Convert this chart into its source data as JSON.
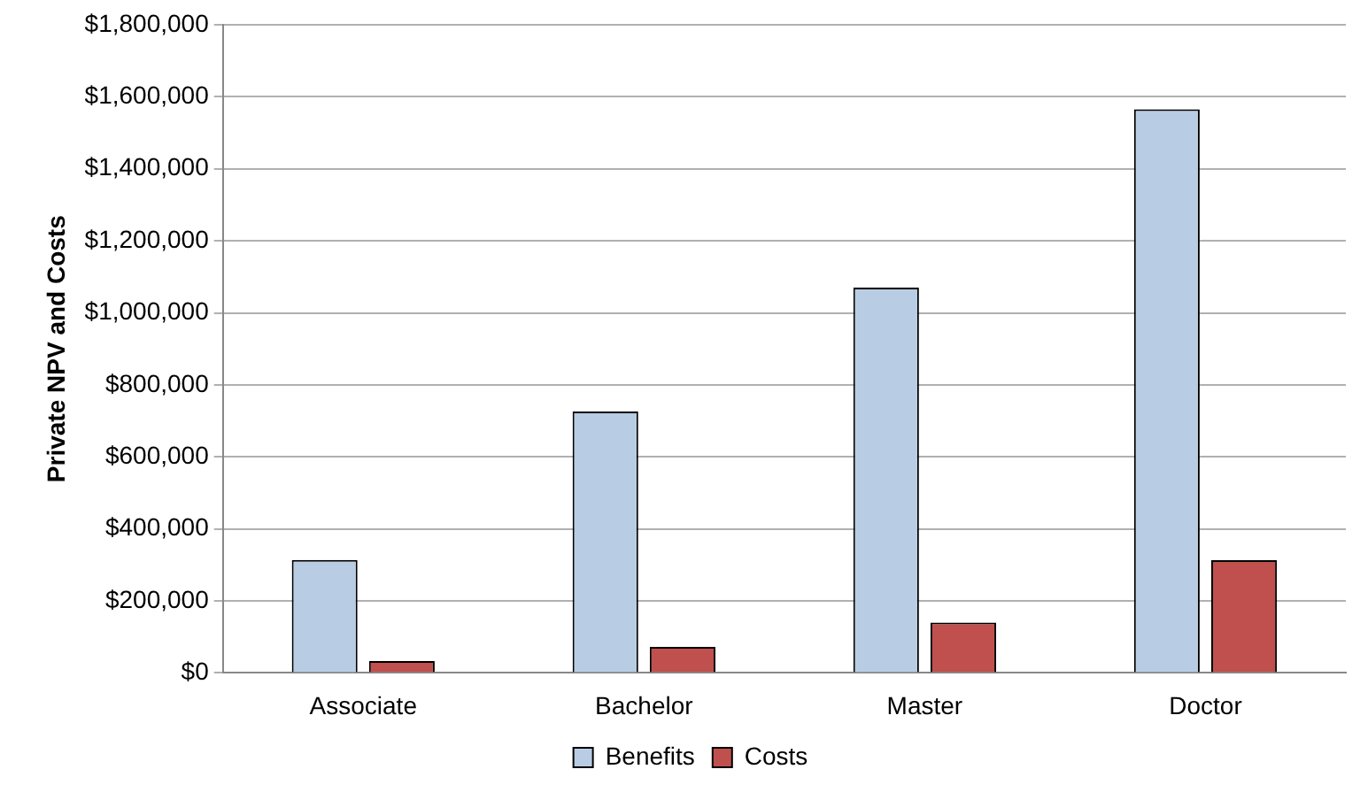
{
  "chart_data": {
    "type": "bar",
    "ylabel": "Private NPV and Costs",
    "categories": [
      "Associate",
      "Bachelor",
      "Master",
      "Doctor"
    ],
    "series": [
      {
        "name": "Benefits",
        "color": "#b8cce4",
        "values": [
          314000,
          726000,
          1070000,
          1565000
        ]
      },
      {
        "name": "Costs",
        "color": "#c0504d",
        "values": [
          33000,
          72000,
          140000,
          313000
        ]
      }
    ],
    "ylim": [
      0,
      1800000
    ],
    "yticks": [
      {
        "value": 0,
        "label": "$0"
      },
      {
        "value": 200000,
        "label": "$200,000"
      },
      {
        "value": 400000,
        "label": "$400,000"
      },
      {
        "value": 600000,
        "label": "$600,000"
      },
      {
        "value": 800000,
        "label": "$800,000"
      },
      {
        "value": 1000000,
        "label": "$1,000,000"
      },
      {
        "value": 1200000,
        "label": "$1,200,000"
      },
      {
        "value": 1400000,
        "label": "$1,400,000"
      },
      {
        "value": 1600000,
        "label": "$1,600,000"
      },
      {
        "value": 1800000,
        "label": "$1,800,000"
      }
    ],
    "grid": "y",
    "legend": "bottom"
  }
}
